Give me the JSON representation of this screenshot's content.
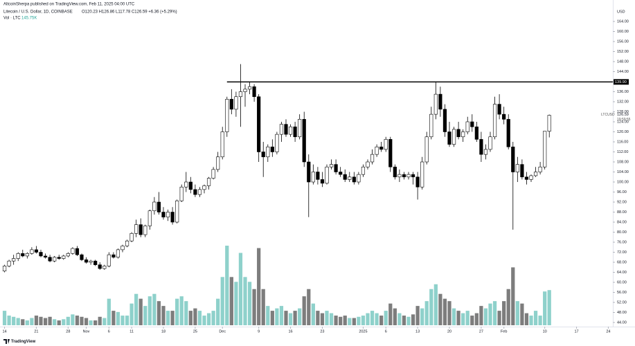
{
  "header": {
    "author_line": "AltcoinSherpa published on TradingView.com, Feb 11, 2025 04:00 UTC",
    "symbol_line": "Litecoin / U.S. Dollar, 1D, COINBASE",
    "ohlc_line": "O120.23 H126.86 L117.78 C126.59 +6.36 (+5.29%)",
    "volume_name": "Vol · LTC",
    "volume_value": "145.75K"
  },
  "chart_data": {
    "type": "candlestick",
    "axis_unit": "USD",
    "symbol_tag": "LTCUSD",
    "countdown": "19:59:55",
    "up_color": "#ffffff",
    "down_color": "#000000",
    "candle_border": "#000000",
    "volume_up_color": "#8ed1cb",
    "volume_down_color": "#7d7d7d",
    "grid": false,
    "open": [
      64.5,
      66.5,
      68.5,
      69.5,
      71.5,
      70.5,
      71.5,
      73,
      72,
      70.5,
      70,
      68.5,
      70,
      69.5,
      70.5,
      71.5,
      73.5,
      71,
      69,
      68,
      68.5,
      67,
      65.5,
      66.5,
      71,
      70,
      73,
      74.5,
      76.5,
      79.5,
      83,
      79,
      82.5,
      88.5,
      92,
      88,
      86,
      88,
      84,
      92.5,
      98,
      100,
      97,
      95,
      97,
      98.5,
      101.5,
      105,
      110,
      120,
      133,
      129,
      134,
      136,
      137,
      138,
      134,
      112,
      110,
      114,
      112,
      119,
      123,
      119,
      122,
      118,
      125,
      108,
      100,
      104,
      101,
      99.5,
      106,
      107,
      104,
      103,
      101,
      102,
      100,
      103,
      106,
      108,
      111,
      114,
      113,
      117,
      106,
      102,
      103,
      102,
      103,
      102,
      98,
      108,
      118,
      127,
      135,
      129,
      120,
      115,
      121,
      118,
      120,
      124,
      122,
      117,
      111,
      113,
      118,
      131,
      127,
      125,
      114,
      104,
      107,
      102,
      101,
      102.5,
      104,
      106,
      120.23
    ],
    "high": [
      67,
      69,
      71,
      72,
      73,
      72,
      74,
      74.5,
      73,
      71.5,
      71,
      70.5,
      71,
      71,
      72,
      74,
      74.5,
      71.5,
      70,
      69,
      69,
      68,
      67,
      72,
      72,
      73.5,
      75,
      77,
      80,
      85,
      85.5,
      83,
      89,
      94,
      96,
      90,
      89,
      90,
      93,
      99,
      104,
      102,
      99,
      98,
      99,
      102,
      106,
      112,
      122,
      134,
      137,
      136,
      147,
      139,
      140,
      139,
      135,
      116,
      115,
      117,
      120,
      124,
      125,
      123,
      124,
      127,
      128,
      111,
      107,
      106,
      104,
      107,
      109,
      109,
      106,
      105,
      104,
      104,
      104,
      107,
      109,
      113,
      115,
      116,
      118,
      118,
      107,
      105,
      104,
      104,
      104,
      104,
      110,
      120,
      130,
      140,
      138,
      131,
      124,
      122,
      124,
      121,
      126,
      127,
      124,
      120,
      115,
      120,
      134,
      135,
      130,
      127,
      116,
      110,
      109,
      104,
      103,
      106,
      108,
      120,
      126.86
    ],
    "low": [
      64,
      66,
      67,
      68.5,
      70,
      69.5,
      71,
      71.5,
      70,
      69.5,
      68,
      68,
      69,
      69,
      70,
      71,
      70.5,
      68.5,
      67.5,
      67,
      66.5,
      65,
      65,
      66,
      69.5,
      69.5,
      72,
      74,
      76,
      78,
      78,
      78,
      81,
      87,
      87,
      85,
      84.5,
      83,
      83.5,
      92,
      96,
      95.5,
      94,
      94,
      95.5,
      97,
      101,
      104,
      109,
      118,
      127,
      126,
      122,
      130,
      135,
      132,
      108,
      102,
      108,
      110,
      111,
      116,
      118,
      118,
      116,
      117,
      106,
      86,
      99,
      99,
      98,
      99,
      105,
      103,
      102,
      100,
      100,
      99,
      99,
      102,
      105,
      107,
      110,
      112,
      112,
      104,
      101,
      100,
      101,
      101,
      99,
      93,
      97,
      107,
      117,
      125,
      126,
      118,
      114,
      114,
      117,
      116,
      119,
      120,
      116,
      108,
      109,
      112,
      117,
      125,
      123,
      113,
      81,
      100,
      101,
      99,
      100,
      102,
      103,
      105,
      117.78
    ],
    "close": [
      66.5,
      68.5,
      69.5,
      71.5,
      70.5,
      71.5,
      73,
      72,
      70.5,
      70,
      68.5,
      70,
      69.5,
      70.5,
      71.5,
      73.5,
      71,
      69,
      68,
      68.5,
      67,
      65.5,
      66.5,
      71,
      70,
      73,
      74.5,
      76.5,
      79.5,
      83,
      79,
      82.5,
      88.5,
      92,
      88,
      86,
      88,
      84,
      92.5,
      98,
      100,
      97,
      95,
      97,
      98.5,
      101.5,
      105,
      110,
      120,
      133,
      129,
      134,
      136,
      137,
      138,
      134,
      112,
      110,
      114,
      112,
      119,
      123,
      119,
      122,
      118,
      125,
      108,
      100,
      104,
      101,
      99.5,
      106,
      107,
      104,
      103,
      101,
      102,
      100,
      103,
      106,
      108,
      111,
      114,
      113,
      117,
      106,
      102,
      103,
      102,
      103,
      102,
      98,
      108,
      118,
      127,
      135,
      129,
      120,
      115,
      121,
      118,
      120,
      124,
      122,
      117,
      111,
      113,
      118,
      131,
      127,
      125,
      114,
      104,
      107,
      102,
      101,
      102.5,
      104,
      106,
      120.23,
      126.59
    ],
    "volume": [
      60,
      40,
      35,
      30,
      25,
      20,
      30,
      40,
      35,
      30,
      35,
      25,
      20,
      25,
      35,
      45,
      40,
      35,
      30,
      20,
      20,
      35,
      30,
      110,
      60,
      55,
      40,
      40,
      90,
      130,
      110,
      80,
      120,
      130,
      100,
      80,
      60,
      60,
      110,
      120,
      100,
      60,
      70,
      60,
      40,
      50,
      60,
      110,
      200,
      330,
      200,
      180,
      300,
      200,
      180,
      150,
      320,
      150,
      80,
      60,
      70,
      80,
      60,
      50,
      60,
      70,
      120,
      150,
      90,
      60,
      50,
      60,
      50,
      40,
      35,
      40,
      30,
      30,
      35,
      40,
      50,
      60,
      50,
      40,
      60,
      90,
      70,
      50,
      40,
      35,
      45,
      80,
      70,
      100,
      150,
      170,
      130,
      110,
      100,
      70,
      60,
      50,
      60,
      40,
      50,
      80,
      70,
      90,
      100,
      60,
      100,
      150,
      240,
      100,
      90,
      50,
      40,
      60,
      40,
      140,
      145.75
    ],
    "ylim": [
      44,
      164
    ],
    "yticks": [
      {
        "value": 164,
        "label": "164.00"
      },
      {
        "value": 160,
        "label": "160.00"
      },
      {
        "value": 156,
        "label": "156.00"
      },
      {
        "value": 152,
        "label": "152.00"
      },
      {
        "value": 148,
        "label": "148.00"
      },
      {
        "value": 144,
        "label": "144.00"
      },
      {
        "value": 140,
        "label": "140.00"
      },
      {
        "value": 136,
        "label": "136.00"
      },
      {
        "value": 132,
        "label": "132.00"
      },
      {
        "value": 128,
        "label": "128.00"
      },
      {
        "value": 124,
        "label": "124.00"
      },
      {
        "value": 120,
        "label": "120.00"
      },
      {
        "value": 116,
        "label": "116.00"
      },
      {
        "value": 112,
        "label": "112.00"
      },
      {
        "value": 108,
        "label": "108.00"
      },
      {
        "value": 104,
        "label": "104.00"
      },
      {
        "value": 100,
        "label": "100.00"
      },
      {
        "value": 96,
        "label": "96.00"
      },
      {
        "value": 92,
        "label": "92.00"
      },
      {
        "value": 88,
        "label": "88.00"
      },
      {
        "value": 84,
        "label": "84.00"
      },
      {
        "value": 80,
        "label": "80.00"
      },
      {
        "value": 76,
        "label": "76.00"
      },
      {
        "value": 72,
        "label": "72.00"
      },
      {
        "value": 68,
        "label": "68.00"
      },
      {
        "value": 64,
        "label": "64.00"
      },
      {
        "value": 60,
        "label": "60.00"
      },
      {
        "value": 56,
        "label": "56.00"
      },
      {
        "value": 52,
        "label": "52.00"
      },
      {
        "value": 48,
        "label": "48.00"
      },
      {
        "value": 44,
        "label": "44.00"
      }
    ],
    "xlim": [
      -1,
      134
    ],
    "xticks": [
      {
        "value": 0,
        "label": "14"
      },
      {
        "value": 7,
        "label": "21"
      },
      {
        "value": 14,
        "label": "28"
      },
      {
        "value": 18,
        "label": "Nov"
      },
      {
        "value": 23,
        "label": "6"
      },
      {
        "value": 28,
        "label": "11"
      },
      {
        "value": 35,
        "label": "18"
      },
      {
        "value": 42,
        "label": "25"
      },
      {
        "value": 48,
        "label": "Dec"
      },
      {
        "value": 56,
        "label": "9"
      },
      {
        "value": 63,
        "label": "16"
      },
      {
        "value": 70,
        "label": "23"
      },
      {
        "value": 79,
        "label": "2025"
      },
      {
        "value": 84,
        "label": "6"
      },
      {
        "value": 91,
        "label": "13"
      },
      {
        "value": 98,
        "label": "20"
      },
      {
        "value": 105,
        "label": "27"
      },
      {
        "value": 110,
        "label": "Feb"
      },
      {
        "value": 119,
        "label": "10"
      },
      {
        "value": 126,
        "label": "17"
      },
      {
        "value": 133,
        "label": "24"
      }
    ],
    "hline": {
      "value": 139.9,
      "label": "139.90",
      "start": 49,
      "color": "#000000"
    }
  },
  "footer": {
    "brand": "TradingView"
  }
}
